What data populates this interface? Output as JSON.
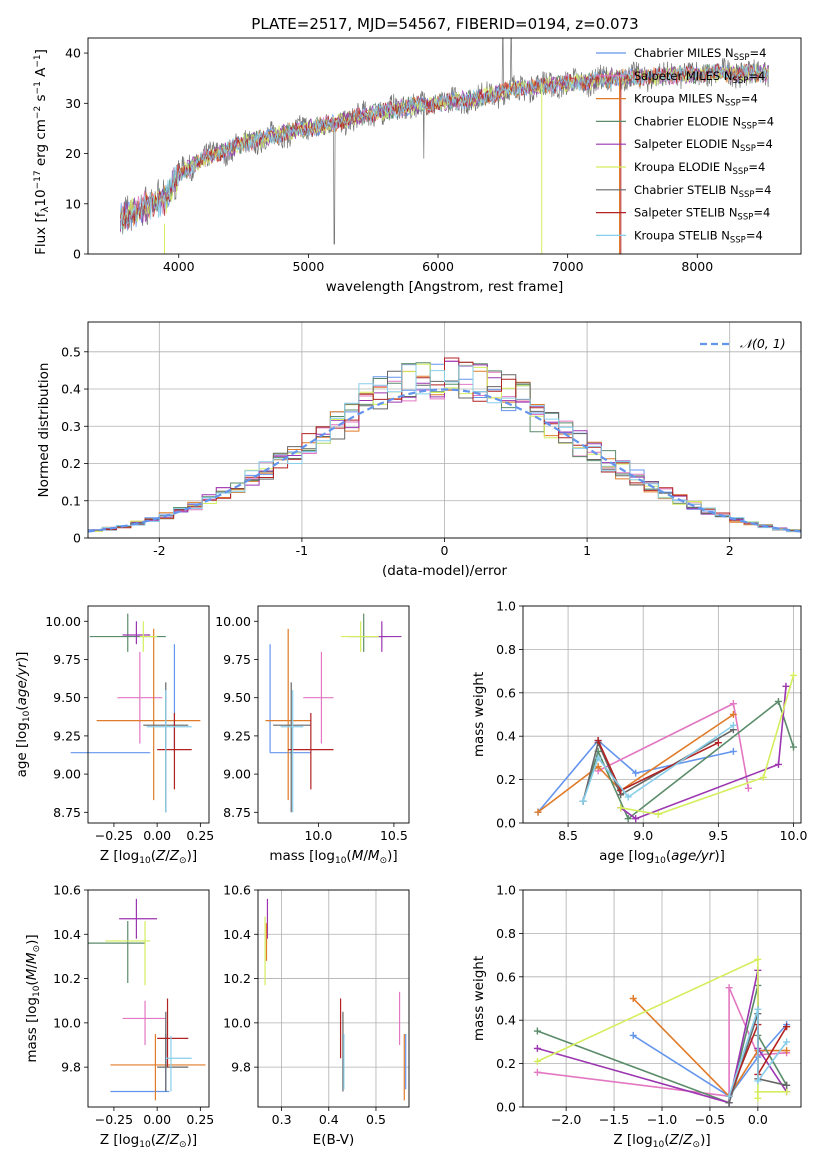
{
  "figure_title": "PLATE=2517, MJD=54567, FIBERID=0194, z=0.073",
  "colors": {
    "series": [
      "#6495ed",
      "#e377c2",
      "#e07b29",
      "#5b8c6a",
      "#9c35b0",
      "#d4ee5e",
      "#666666",
      "#b22222",
      "#87ceeb"
    ]
  },
  "legend": {
    "top": [
      {
        "label": "Chabrier MILES",
        "sub": "SSP",
        "n": "=4",
        "color": "#6495ed"
      },
      {
        "label": "Salpeter MILES",
        "sub": "SSP",
        "n": "=4",
        "color": "#e377c2"
      },
      {
        "label": "Kroupa MILES",
        "sub": "SSP",
        "n": "=4",
        "color": "#e07b29"
      },
      {
        "label": "Chabrier ELODIE",
        "sub": "SSP",
        "n": "=4",
        "color": "#5b8c6a"
      },
      {
        "label": "Salpeter ELODIE",
        "sub": "SSP",
        "n": "=4",
        "color": "#9c35b0"
      },
      {
        "label": "Kroupa ELODIE",
        "sub": "SSP",
        "n": "=4",
        "color": "#d4ee5e"
      },
      {
        "label": "Chabrier STELIB",
        "sub": "SSP",
        "n": "=4",
        "color": "#666666"
      },
      {
        "label": "Salpeter STELIB",
        "sub": "SSP",
        "n": "=4",
        "color": "#b22222"
      },
      {
        "label": "Kroupa STELIB",
        "sub": "SSP",
        "n": "=4",
        "color": "#87ceeb"
      }
    ],
    "hist": "𝒩(0, 1)"
  },
  "chart_data": [
    {
      "id": "spectrum",
      "type": "line",
      "title": "PLATE=2517, MJD=54567, FIBERID=0194, z=0.073",
      "xlabel": "wavelength [Angstrom, rest frame]",
      "ylabel": "Flux [f_λ 10^-17 erg cm^-2 s^-1 A^-1]",
      "xlim": [
        3300,
        8800
      ],
      "ylim": [
        0,
        43
      ],
      "xticks": [
        4000,
        5000,
        6000,
        7000,
        8000
      ],
      "yticks": [
        0,
        10,
        20,
        30,
        40
      ],
      "continuum": [
        [
          3550,
          7
        ],
        [
          3700,
          9
        ],
        [
          3900,
          11
        ],
        [
          4000,
          16
        ],
        [
          4200,
          19
        ],
        [
          4500,
          22
        ],
        [
          4800,
          24
        ],
        [
          5000,
          25
        ],
        [
          5200,
          26
        ],
        [
          5500,
          28
        ],
        [
          5800,
          29.5
        ],
        [
          6000,
          30
        ],
        [
          6300,
          31
        ],
        [
          6600,
          33
        ],
        [
          7000,
          34
        ],
        [
          7400,
          35
        ],
        [
          7800,
          35.5
        ],
        [
          8100,
          36
        ],
        [
          8400,
          36
        ],
        [
          8550,
          36
        ]
      ],
      "data_range": [
        3550,
        8550
      ]
    },
    {
      "id": "residual_hist",
      "type": "line",
      "xlabel": "(data-model)/error",
      "ylabel": "Normed distribution",
      "xlim": [
        -2.5,
        2.5
      ],
      "ylim": [
        0,
        0.58
      ],
      "xticks": [
        -2,
        -1,
        0,
        1,
        2
      ],
      "yticks": [
        0.0,
        0.1,
        0.2,
        0.3,
        0.4,
        0.5
      ],
      "grid": true,
      "legend_position": "top-right",
      "bin_width": 0.1
    },
    {
      "id": "age_vs_Z",
      "type": "scatter",
      "xlabel": "Z [log10(Z/Z⊙)]",
      "ylabel": "age [log10(age/yr)]",
      "xlim": [
        -0.4,
        0.3
      ],
      "ylim": [
        8.68,
        10.1
      ],
      "xticks": [
        -0.25,
        0.0,
        0.25
      ],
      "xticklabels": [
        "−0.25",
        "0.00",
        "0.25"
      ],
      "yticks": [
        8.75,
        9.0,
        9.25,
        9.5,
        9.75,
        10.0
      ],
      "yticklabels": [
        "8.75",
        "9.00",
        "9.25",
        "9.50",
        "9.75",
        "10.00"
      ],
      "points": [
        {
          "x": -0.27,
          "y": 9.14,
          "xe": 0.23,
          "ye": 0.0,
          "ye_hi": 0.0,
          "color": "#6495ed",
          "vx": 0.1,
          "vy0": 9.85,
          "vy1": 9.14
        },
        {
          "x": -0.1,
          "y": 9.5,
          "xe": 0.13,
          "ye": 0.3,
          "color": "#e377c2"
        },
        {
          "x": -0.05,
          "y": 9.35,
          "xe": 0.3,
          "ye": 0.0,
          "color": "#e07b29",
          "vx": -0.02,
          "vy0": 9.95,
          "vy1": 8.83
        },
        {
          "x": -0.17,
          "y": 9.9,
          "xe": 0.22,
          "ye": 0.0,
          "color": "#5b8c6a",
          "vx": -0.17,
          "vy0": 10.05,
          "vy1": 9.8
        },
        {
          "x": -0.12,
          "y": 9.91,
          "xe": 0.08,
          "ye": 0.0,
          "color": "#9c35b0",
          "vx": -0.12,
          "vy0": 10.0,
          "vy1": 9.85
        },
        {
          "x": -0.05,
          "y": 9.9,
          "xe": 0.05,
          "ye": 0.0,
          "color": "#d4ee5e",
          "vx": -0.08,
          "vy0": 10.0,
          "vy1": 9.8
        },
        {
          "x": 0.05,
          "y": 9.32,
          "xe": 0.13,
          "ye": 0.0,
          "color": "#666666",
          "vx": 0.05,
          "vy0": 9.6,
          "vy1": 8.75
        },
        {
          "x": 0.1,
          "y": 9.16,
          "xe": 0.1,
          "ye": 0.0,
          "color": "#b22222",
          "vx": 0.1,
          "vy0": 9.4,
          "vy1": 8.9
        },
        {
          "x": 0.07,
          "y": 9.31,
          "xe": 0.13,
          "ye": 0.0,
          "color": "#87ceeb",
          "vx": 0.05,
          "vy0": 9.55,
          "vy1": 8.75
        }
      ]
    },
    {
      "id": "age_vs_mass",
      "type": "scatter",
      "xlabel": "mass [log10(M/M⊙)]",
      "xlim": [
        9.6,
        10.6
      ],
      "ylim": [
        8.68,
        10.1
      ],
      "xticks": [
        10.0,
        10.5
      ],
      "xticklabels": [
        "10.0",
        "10.5"
      ],
      "yticks": [
        8.75,
        9.0,
        9.25,
        9.5,
        9.75,
        10.0
      ],
      "yticklabels": [
        "8.75",
        "9.00",
        "9.25",
        "9.50",
        "9.75",
        "10.00"
      ]
    },
    {
      "id": "massweight_vs_age",
      "type": "line",
      "xlabel": "age [log10(age/yr)]",
      "ylabel": "mass weight",
      "xlim": [
        8.2,
        10.05
      ],
      "ylim": [
        0,
        1
      ],
      "xticks": [
        8.5,
        9.0,
        9.5,
        10.0
      ],
      "xticklabels": [
        "8.5",
        "9.0",
        "9.5",
        "10.0"
      ],
      "yticks": [
        0.0,
        0.2,
        0.4,
        0.6,
        0.8,
        1.0
      ],
      "yticklabels": [
        "0.0",
        "0.2",
        "0.4",
        "0.6",
        "0.8",
        "1.0"
      ],
      "grid": true,
      "series": [
        {
          "color": "#6495ed",
          "x": [
            8.3,
            8.7,
            8.95,
            9.6
          ],
          "y": [
            0.05,
            0.38,
            0.23,
            0.33
          ]
        },
        {
          "color": "#e377c2",
          "x": [
            8.7,
            9.6,
            9.7
          ],
          "y": [
            0.24,
            0.55,
            0.16
          ]
        },
        {
          "color": "#e07b29",
          "x": [
            8.3,
            8.7,
            8.85,
            9.6
          ],
          "y": [
            0.05,
            0.26,
            0.15,
            0.5
          ]
        },
        {
          "color": "#5b8c6a",
          "x": [
            8.6,
            8.7,
            8.9,
            9.9,
            10.0
          ],
          "y": [
            0.1,
            0.33,
            0.02,
            0.56,
            0.35
          ]
        },
        {
          "color": "#9c35b0",
          "x": [
            8.85,
            8.95,
            9.9,
            9.95
          ],
          "y": [
            0.07,
            0.02,
            0.27,
            0.63
          ]
        },
        {
          "color": "#d4ee5e",
          "x": [
            8.85,
            9.1,
            9.8,
            10.0
          ],
          "y": [
            0.07,
            0.04,
            0.21,
            0.68
          ]
        },
        {
          "color": "#666666",
          "x": [
            8.6,
            8.7,
            8.85,
            9.6
          ],
          "y": [
            0.1,
            0.37,
            0.13,
            0.43
          ]
        },
        {
          "color": "#b22222",
          "x": [
            8.7,
            8.85,
            9.5
          ],
          "y": [
            0.38,
            0.15,
            0.37
          ]
        },
        {
          "color": "#87ceeb",
          "x": [
            8.6,
            8.7,
            8.9,
            9.6
          ],
          "y": [
            0.1,
            0.3,
            0.12,
            0.45
          ]
        }
      ]
    },
    {
      "id": "mass_vs_Z",
      "type": "scatter",
      "xlabel": "Z [log10(Z/Z⊙)]",
      "ylabel": "mass [log10(M/M⊙)]",
      "xlim": [
        -0.4,
        0.3
      ],
      "ylim": [
        9.62,
        10.6
      ],
      "xticks": [
        -0.25,
        0.0,
        0.25
      ],
      "xticklabels": [
        "−0.25",
        "0.00",
        "0.25"
      ],
      "yticks": [
        9.8,
        10.0,
        10.2,
        10.4,
        10.6
      ],
      "yticklabels": [
        "9.8",
        "10.0",
        "10.2",
        "10.4",
        "10.6"
      ]
    },
    {
      "id": "mass_vs_EBV",
      "type": "scatter",
      "xlabel": "E(B-V)",
      "xlim": [
        0.25,
        0.57
      ],
      "ylim": [
        9.62,
        10.6
      ],
      "xticks": [
        0.3,
        0.4,
        0.5
      ],
      "xticklabels": [
        "0.3",
        "0.4",
        "0.5"
      ],
      "yticks": [
        9.8,
        10.0,
        10.2,
        10.4,
        10.6
      ],
      "yticklabels": [
        "9.8",
        "10.0",
        "10.2",
        "10.4",
        "10.6"
      ]
    },
    {
      "id": "massweight_vs_Z",
      "type": "line",
      "xlabel": "Z [log10(Z/Z⊙)]",
      "ylabel": "mass weight",
      "xlim": [
        -2.45,
        0.45
      ],
      "ylim": [
        0,
        1
      ],
      "xticks": [
        -2.0,
        -1.5,
        -1.0,
        -0.5,
        0.0
      ],
      "xticklabels": [
        "−2.0",
        "−1.5",
        "−1.0",
        "−0.5",
        "0.0"
      ],
      "yticks": [
        0.0,
        0.2,
        0.4,
        0.6,
        0.8,
        1.0
      ],
      "yticklabels": [
        "0.0",
        "0.2",
        "0.4",
        "0.6",
        "0.8",
        "1.0"
      ],
      "grid": true,
      "series": [
        {
          "color": "#6495ed",
          "x": [
            -1.3,
            -0.3,
            0.0,
            0.3
          ],
          "y": [
            0.33,
            0.05,
            0.23,
            0.38
          ]
        },
        {
          "color": "#e377c2",
          "x": [
            -2.3,
            -0.3,
            -0.3,
            0.0,
            0.3
          ],
          "y": [
            0.16,
            0.05,
            0.55,
            0.24,
            0.25
          ]
        },
        {
          "color": "#e07b29",
          "x": [
            -1.3,
            -0.3,
            0.0,
            0.3
          ],
          "y": [
            0.5,
            0.05,
            0.26,
            0.26
          ]
        },
        {
          "color": "#5b8c6a",
          "x": [
            -2.3,
            -0.3,
            0.0,
            0.0,
            0.3
          ],
          "y": [
            0.35,
            0.02,
            0.56,
            0.33,
            0.1
          ]
        },
        {
          "color": "#9c35b0",
          "x": [
            -2.3,
            -0.3,
            0.0,
            0.0,
            0.3
          ],
          "y": [
            0.27,
            0.02,
            0.63,
            0.27,
            0.07
          ]
        },
        {
          "color": "#d4ee5e",
          "x": [
            -2.3,
            0.0,
            0.0,
            0.0,
            0.3
          ],
          "y": [
            0.21,
            0.68,
            0.04,
            0.07,
            0.07
          ]
        },
        {
          "color": "#666666",
          "x": [
            -0.3,
            0.0,
            0.0,
            0.3
          ],
          "y": [
            0.02,
            0.43,
            0.13,
            0.1
          ]
        },
        {
          "color": "#b22222",
          "x": [
            -0.3,
            0.0,
            0.0,
            0.3
          ],
          "y": [
            0.05,
            0.38,
            0.15,
            0.37
          ]
        },
        {
          "color": "#87ceeb",
          "x": [
            -0.3,
            0.0,
            0.0,
            0.3
          ],
          "y": [
            0.05,
            0.45,
            0.12,
            0.3
          ]
        }
      ]
    }
  ],
  "age_mass_points": [
    {
      "color": "#6495ed",
      "x0": 9.68,
      "x1": 9.95,
      "y": 9.14,
      "vx": 9.68,
      "vy0": 9.85,
      "vy1": 9.14
    },
    {
      "color": "#e377c2",
      "x0": 9.9,
      "x1": 10.1,
      "y": 9.5,
      "vx": 10.02,
      "vy0": 9.8,
      "vy1": 9.2
    },
    {
      "color": "#e07b29",
      "x0": 9.65,
      "x1": 9.95,
      "y": 9.35,
      "vx": 9.8,
      "vy0": 9.95,
      "vy1": 8.83
    },
    {
      "color": "#5b8c6a",
      "x0": 10.2,
      "x1": 10.45,
      "y": 9.9,
      "vx": 10.3,
      "vy0": 10.05,
      "vy1": 9.8
    },
    {
      "color": "#9c35b0",
      "x0": 10.3,
      "x1": 10.55,
      "y": 9.9,
      "vx": 10.42,
      "vy0": 10.0,
      "vy1": 9.8
    },
    {
      "color": "#d4ee5e",
      "x0": 10.15,
      "x1": 10.4,
      "y": 9.9,
      "vx": 10.28,
      "vy0": 10.0,
      "vy1": 9.8
    },
    {
      "color": "#666666",
      "x0": 9.7,
      "x1": 9.95,
      "y": 9.32,
      "vx": 9.82,
      "vy0": 9.6,
      "vy1": 8.75
    },
    {
      "color": "#b22222",
      "x0": 9.8,
      "x1": 10.1,
      "y": 9.16,
      "vx": 9.95,
      "vy0": 9.4,
      "vy1": 8.9
    },
    {
      "color": "#87ceeb",
      "x0": 9.75,
      "x1": 9.9,
      "y": 9.31,
      "vx": 9.83,
      "vy0": 9.55,
      "vy1": 8.75
    }
  ],
  "mass_Z_points": [
    {
      "color": "#6495ed",
      "x0": -0.27,
      "x1": 0.07,
      "y": 9.69,
      "vx": 0.05,
      "vy0": 9.95,
      "vy1": 9.69
    },
    {
      "color": "#e377c2",
      "x0": -0.2,
      "x1": 0.05,
      "y": 10.02,
      "vx": -0.07,
      "vy0": 10.1,
      "vy1": 9.9
    },
    {
      "color": "#e07b29",
      "x0": -0.27,
      "x1": 0.28,
      "y": 9.81,
      "vx": -0.01,
      "vy0": 9.95,
      "vy1": 9.65
    },
    {
      "color": "#5b8c6a",
      "x0": -0.4,
      "x1": -0.07,
      "y": 10.36,
      "vx": -0.17,
      "vy0": 10.46,
      "vy1": 10.18
    },
    {
      "color": "#9c35b0",
      "x0": -0.22,
      "x1": 0.0,
      "y": 10.47,
      "vx": -0.12,
      "vy0": 10.56,
      "vy1": 10.38
    },
    {
      "color": "#d4ee5e",
      "x0": -0.3,
      "x1": -0.04,
      "y": 10.37,
      "vx": -0.07,
      "vy0": 10.46,
      "vy1": 10.17
    },
    {
      "color": "#666666",
      "x0": 0.0,
      "x1": 0.18,
      "y": 9.8,
      "vx": 0.05,
      "vy0": 10.05,
      "vy1": 9.69
    },
    {
      "color": "#b22222",
      "x0": 0.0,
      "x1": 0.18,
      "y": 9.93,
      "vx": 0.06,
      "vy0": 10.11,
      "vy1": 9.8
    },
    {
      "color": "#87ceeb",
      "x0": 0.05,
      "x1": 0.2,
      "y": 9.84,
      "vx": 0.08,
      "vy0": 9.94,
      "vy1": 9.69
    }
  ],
  "mass_ebv_points": [
    {
      "color": "#9c35b0",
      "x": 0.27,
      "y0": 10.56,
      "y1": 10.38
    },
    {
      "color": "#d4ee5e",
      "x": 0.265,
      "y0": 10.48,
      "y1": 10.17
    },
    {
      "color": "#e07b29",
      "x": 0.268,
      "y0": 10.45,
      "y1": 10.28
    },
    {
      "color": "#b22222",
      "x": 0.425,
      "y0": 10.11,
      "y1": 9.84
    },
    {
      "color": "#666666",
      "x": 0.43,
      "y0": 10.05,
      "y1": 9.69
    },
    {
      "color": "#87ceeb",
      "x": 0.432,
      "y0": 9.95,
      "y1": 9.7
    },
    {
      "color": "#e377c2",
      "x": 0.55,
      "y0": 10.14,
      "y1": 9.9
    },
    {
      "color": "#e07b29",
      "x": 0.56,
      "y0": 9.95,
      "y1": 9.65
    },
    {
      "color": "#6495ed",
      "x": 0.563,
      "y0": 9.95,
      "y1": 9.7
    }
  ]
}
